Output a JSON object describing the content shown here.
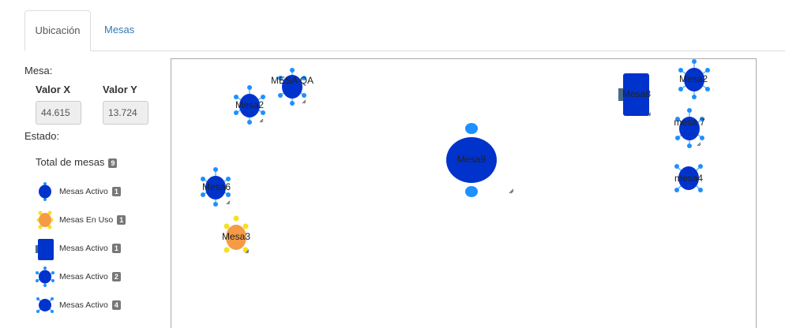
{
  "tabs": [
    {
      "label": "Ubicación",
      "active": true
    },
    {
      "label": "Mesas",
      "active": false
    }
  ],
  "panel": {
    "mesa_label": "Mesa:",
    "x_label": "Valor X",
    "y_label": "Valor Y",
    "x_value": "44.615",
    "y_value": "13.724",
    "estado_label": "Estado:",
    "total_label": "Total de mesas",
    "total_count": "9"
  },
  "legend": [
    {
      "text": "Mesas Activo",
      "count": "1",
      "icon": "round-table-2-chairs-icon"
    },
    {
      "text": "Mesas En Uso",
      "count": "1",
      "icon": "round-table-in-use-icon"
    },
    {
      "text": "Mesas Activo",
      "count": "1",
      "icon": "rectangular-table-icon"
    },
    {
      "text": "Mesas Activo",
      "count": "2",
      "icon": "round-table-6-chairs-icon"
    },
    {
      "text": "Mesas Activo",
      "count": "4",
      "icon": "round-table-4-chairs-icon"
    }
  ],
  "colors": {
    "table_active": "#0033cc",
    "chair_active": "#1e90ff",
    "table_in_use": "#f59b45",
    "chair_in_use": "#f7e020",
    "table_rect": "#0033cc",
    "big_table": "#0033cc"
  },
  "tables": [
    {
      "label": "Mesa2",
      "status": "active"
    },
    {
      "label": "MESA QA",
      "status": "active"
    },
    {
      "label": "Mesa9",
      "status": "active"
    },
    {
      "label": "Mesa8",
      "status": "active"
    },
    {
      "label": "Mesa2",
      "status": "active"
    },
    {
      "label": "mesa 7",
      "status": "active"
    },
    {
      "label": "mesa4",
      "status": "active"
    },
    {
      "label": "Mesa6",
      "status": "active"
    },
    {
      "label": "Mesa3",
      "status": "in use"
    }
  ]
}
